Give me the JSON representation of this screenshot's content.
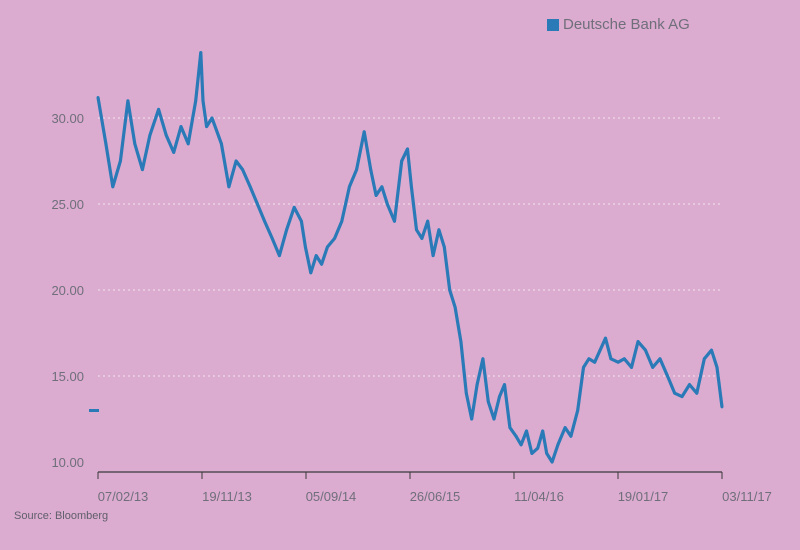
{
  "chart_data": {
    "type": "line",
    "title": "",
    "xlabel": "",
    "ylabel": "",
    "ylim": [
      10,
      30
    ],
    "y_ticks": [
      "10.00",
      "15.00",
      "20.00",
      "25.00",
      "30.00"
    ],
    "y_tick_values": [
      10,
      15,
      20,
      25,
      30
    ],
    "x_tick_labels": [
      "07/02/13",
      "19/11/13",
      "05/09/14",
      "26/06/15",
      "11/04/16",
      "19/01/17",
      "03/11/17"
    ],
    "grid": "horizontal dotted",
    "legend_position": "top-right",
    "series": [
      {
        "name": "Deutsche Bank AG",
        "color": "#2a7ab8",
        "x": [
          "2013-02-07",
          "2013-03-01",
          "2013-03-20",
          "2013-04-10",
          "2013-05-01",
          "2013-05-20",
          "2013-06-10",
          "2013-07-01",
          "2013-07-25",
          "2013-08-15",
          "2013-09-05",
          "2013-09-25",
          "2013-10-15",
          "2013-11-05",
          "2013-11-19",
          "2013-11-25",
          "2013-12-05",
          "2013-12-20",
          "2014-01-15",
          "2014-02-05",
          "2014-02-25",
          "2014-03-15",
          "2014-04-05",
          "2014-04-25",
          "2014-05-15",
          "2014-06-05",
          "2014-06-25",
          "2014-07-15",
          "2014-08-05",
          "2014-08-25",
          "2014-09-05",
          "2014-09-20",
          "2014-10-05",
          "2014-10-20",
          "2014-11-05",
          "2014-11-25",
          "2014-12-15",
          "2015-01-05",
          "2015-01-25",
          "2015-02-15",
          "2015-03-05",
          "2015-03-20",
          "2015-04-05",
          "2015-04-20",
          "2015-05-10",
          "2015-05-30",
          "2015-06-15",
          "2015-06-26",
          "2015-07-10",
          "2015-07-25",
          "2015-08-10",
          "2015-08-25",
          "2015-09-10",
          "2015-09-25",
          "2015-10-10",
          "2015-10-25",
          "2015-11-10",
          "2015-11-25",
          "2015-12-10",
          "2015-12-25",
          "2016-01-10",
          "2016-01-25",
          "2016-02-10",
          "2016-02-25",
          "2016-03-10",
          "2016-03-25",
          "2016-04-11",
          "2016-04-25",
          "2016-05-10",
          "2016-05-25",
          "2016-06-10",
          "2016-06-24",
          "2016-07-05",
          "2016-07-20",
          "2016-08-05",
          "2016-08-25",
          "2016-09-10",
          "2016-09-29",
          "2016-10-15",
          "2016-10-30",
          "2016-11-15",
          "2016-11-30",
          "2016-12-15",
          "2016-12-30",
          "2017-01-19",
          "2017-02-05",
          "2017-02-25",
          "2017-03-15",
          "2017-04-05",
          "2017-04-25",
          "2017-05-15",
          "2017-06-05",
          "2017-06-25",
          "2017-07-15",
          "2017-08-05",
          "2017-08-25",
          "2017-09-15",
          "2017-10-05",
          "2017-10-20",
          "2017-11-03"
        ],
        "y": [
          31.2,
          28.5,
          26.0,
          27.5,
          31.0,
          28.5,
          27.0,
          29.0,
          30.5,
          29.0,
          28.0,
          29.5,
          28.5,
          31.0,
          33.8,
          31.0,
          29.5,
          30.0,
          28.5,
          26.0,
          27.5,
          27.0,
          26.0,
          25.0,
          24.0,
          23.0,
          22.0,
          23.5,
          24.8,
          24.0,
          22.5,
          21.0,
          22.0,
          21.5,
          22.5,
          23.0,
          24.0,
          26.0,
          27.0,
          29.2,
          27.0,
          25.5,
          26.0,
          25.0,
          24.0,
          27.5,
          28.2,
          26.0,
          23.5,
          23.0,
          24.0,
          22.0,
          23.5,
          22.5,
          20.0,
          19.0,
          17.0,
          14.0,
          12.5,
          14.5,
          16.0,
          13.5,
          12.5,
          13.8,
          14.5,
          12.0,
          11.5,
          11.0,
          11.8,
          10.5,
          10.8,
          11.8,
          10.5,
          10.0,
          11.0,
          12.0,
          11.5,
          13.0,
          15.5,
          16.0,
          15.8,
          16.5,
          17.2,
          16.0,
          15.8,
          16.0,
          15.5,
          17.0,
          16.5,
          15.5,
          16.0,
          15.0,
          14.0,
          13.8,
          14.5,
          14.0,
          16.0,
          16.5,
          15.5,
          13.2
        ]
      }
    ]
  },
  "legend": {
    "label": "Deutsche Bank AG",
    "color": "#2a7ab8"
  },
  "source": "Source: Bloomberg"
}
